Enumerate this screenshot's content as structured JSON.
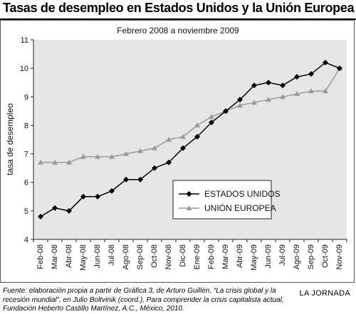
{
  "header": {
    "title": "Tasas de desempleo en Estados Unidos y la Unión Europea"
  },
  "chart_data": {
    "type": "line",
    "subtitle": "Febrero 2008 a noviembre 2009",
    "xlabel": "",
    "ylabel": "tasa de desempleo",
    "ylim": [
      4,
      11
    ],
    "yticks": [
      4,
      5,
      6,
      7,
      8,
      9,
      10,
      11
    ],
    "grid": false,
    "legend_position": "bottom-right",
    "categories": [
      "Feb-08",
      "Mar-08",
      "Abr-08",
      "May-08",
      "Jun-08",
      "Jul-08",
      "Ago-08",
      "Sep-08",
      "Oct-08",
      "Nov-08",
      "Dic-08",
      "Ene-09",
      "Feb-09",
      "Mar-09",
      "Abr-09",
      "May-09",
      "Jun-09",
      "Jul-09",
      "Ago-09",
      "Sep-09",
      "Oct-09",
      "Nov-09"
    ],
    "series": [
      {
        "name": "ESTADOS UNIDOS",
        "color": "#000000",
        "marker": "diamond",
        "values": [
          4.8,
          5.1,
          5.0,
          5.5,
          5.5,
          5.7,
          6.1,
          6.1,
          6.5,
          6.7,
          7.2,
          7.6,
          8.1,
          8.5,
          8.9,
          9.4,
          9.5,
          9.4,
          9.7,
          9.8,
          10.2,
          10.0
        ]
      },
      {
        "name": "UNIÓN EUROPEA",
        "color": "#999999",
        "marker": "triangle",
        "values": [
          6.7,
          6.7,
          6.7,
          6.9,
          6.9,
          6.9,
          7.0,
          7.1,
          7.2,
          7.5,
          7.6,
          8.0,
          8.3,
          8.5,
          8.7,
          8.8,
          8.9,
          9.0,
          9.1,
          9.2,
          9.2,
          10.0
        ]
      }
    ]
  },
  "footer": {
    "source": "Fuente: elaboración propia a partir de Gráfica 3, de Arturo Guillén, “La crisis global y la recesión mundial”, en Julio Boltvinik (coord.), Para comprender la crisis capitalista actual, Fundación Heberto Castillo Martínez, A.C., México, 2010.",
    "credit": "LA JORNADA"
  }
}
